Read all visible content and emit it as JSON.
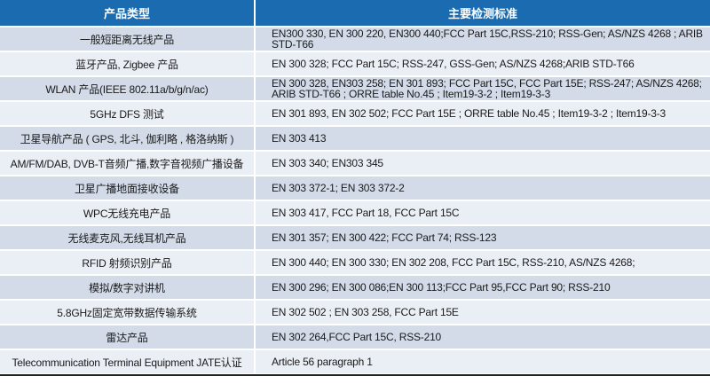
{
  "header": {
    "col1": "产品类型",
    "col2": "主要检测标准"
  },
  "rows": [
    {
      "product": "一般短距离无线产品",
      "standards": "EN300 330, EN 300 220, EN300 440;FCC Part 15C,RSS-210; RSS-Gen; AS/NZS 4268 ; ARIB STD-T66"
    },
    {
      "product": "蓝牙产品, Zigbee 产品",
      "standards": "EN 300 328; FCC Part 15C; RSS-247, GSS-Gen; AS/NZS 4268;ARIB STD-T66"
    },
    {
      "product": "WLAN 产品(IEEE 802.11a/b/g/n/ac)",
      "standards": "EN 300 328, EN303 258; EN 301 893; FCC Part 15C, FCC Part 15E; RSS-247; AS/NZS 4268; ARIB STD-T66 ; ORRE table No.45 ; Item19-3-2 ; Item19-3-3"
    },
    {
      "product": "5GHz DFS 测试",
      "standards": "EN 301 893, EN 302 502; FCC Part 15E ; ORRE table No.45 ; Item19-3-2 ; Item19-3-3"
    },
    {
      "product": "卫星导航产品 ( GPS, 北斗, 伽利略 , 格洛纳斯 )",
      "standards": "EN 303 413"
    },
    {
      "product": "AM/FM/DAB, DVB-T音频广播,数字音视频广播设备",
      "standards": "EN 303 340; EN303 345"
    },
    {
      "product": "卫星广播地面接收设备",
      "standards": "EN 303 372-1; EN 303 372-2"
    },
    {
      "product": "WPC无线充电产品",
      "standards": "EN 303 417, FCC Part 18, FCC Part 15C"
    },
    {
      "product": "无线麦克风,无线耳机产品",
      "standards": "EN 301 357; EN 300 422; FCC Part 74; RSS-123"
    },
    {
      "product": "RFID 射频识别产品",
      "standards": "EN 300 440; EN 300 330; EN 302 208, FCC Part 15C, RSS-210, AS/NZS 4268;"
    },
    {
      "product": "模拟/数字对讲机",
      "standards": "EN 300 296; EN 300 086;EN 300 113;FCC Part 95,FCC Part 90; RSS-210"
    },
    {
      "product": "5.8GHz固定宽带数据传输系统",
      "standards": "EN 302 502 ; EN 303 258, FCC Part 15E"
    },
    {
      "product": "雷达产品",
      "standards": "EN 302 264,FCC Part 15C, RSS-210"
    },
    {
      "product": "Telecommunication Terminal Equipment JATE认证",
      "standards": "Article 56 paragraph 1"
    }
  ],
  "colors": {
    "header": "#1a6bb0",
    "row_dark": "#d3dbe8",
    "row_light": "#eaeef5"
  }
}
